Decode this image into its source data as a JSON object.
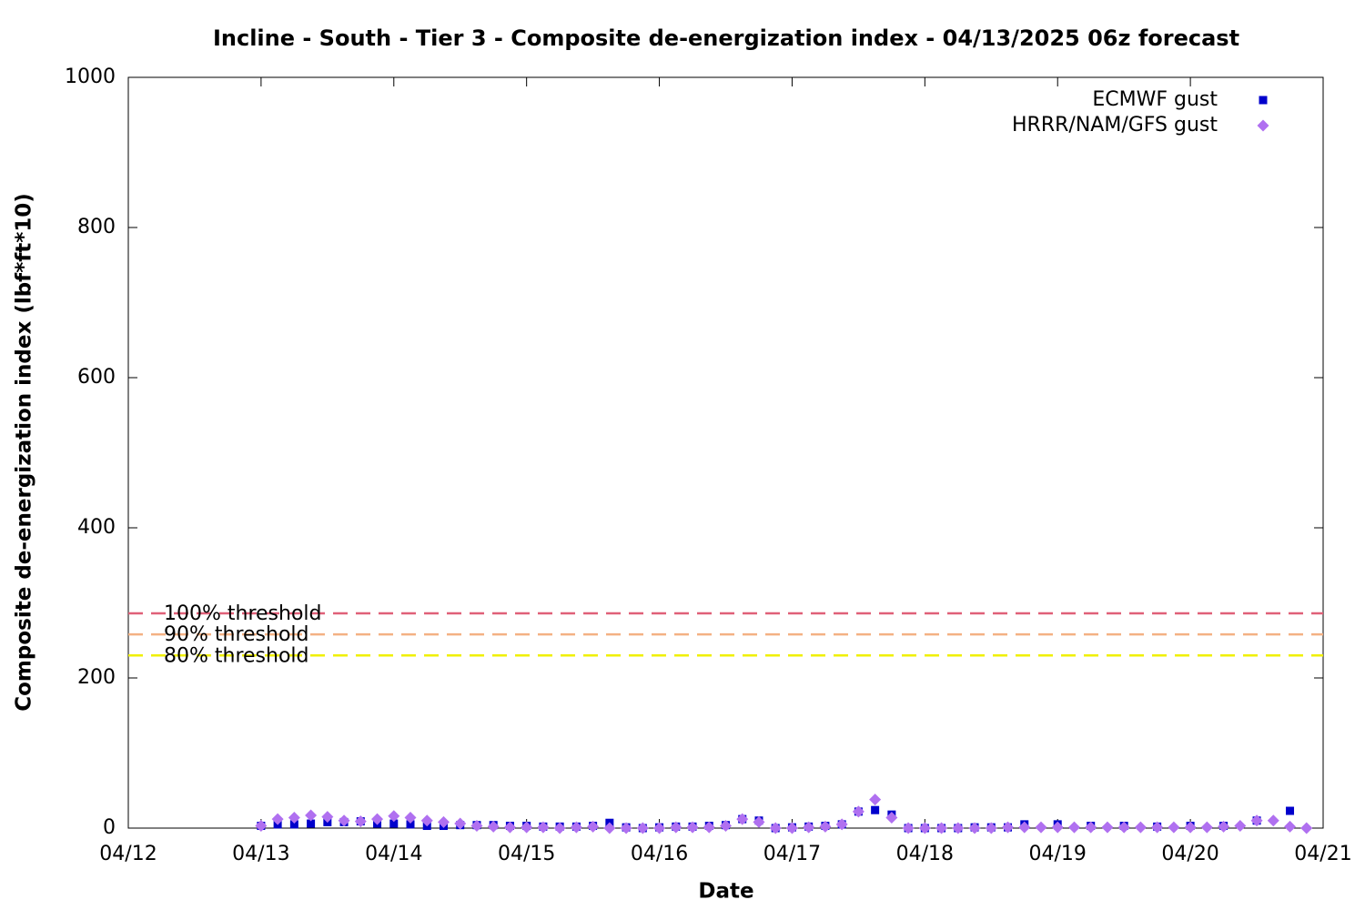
{
  "chart_data": {
    "type": "scatter",
    "title": "Incline - South - Tier 3 - Composite de-energization index - 04/13/2025 06z forecast",
    "x_label": "Date",
    "y_label": "Composite de-energization index (lbf*ft*10)",
    "xlim": [
      0,
      9
    ],
    "xticks": [
      {
        "value": 0,
        "label": "04/12"
      },
      {
        "value": 1,
        "label": "04/13"
      },
      {
        "value": 2,
        "label": "04/14"
      },
      {
        "value": 3,
        "label": "04/15"
      },
      {
        "value": 4,
        "label": "04/16"
      },
      {
        "value": 5,
        "label": "04/17"
      },
      {
        "value": 6,
        "label": "04/18"
      },
      {
        "value": 7,
        "label": "04/19"
      },
      {
        "value": 8,
        "label": "04/20"
      },
      {
        "value": 9,
        "label": "04/21"
      }
    ],
    "ylim": [
      0,
      1000
    ],
    "yticks": [
      0,
      200,
      400,
      600,
      800,
      1000
    ],
    "legend_position": "top-right",
    "thresholds": [
      {
        "label": "100% threshold",
        "value": 286,
        "color": "#e06078"
      },
      {
        "label": "90% threshold",
        "value": 258,
        "color": "#f4b183"
      },
      {
        "label": "80% threshold",
        "value": 230,
        "color": "#f0f000"
      }
    ],
    "series": [
      {
        "name": "ECMWF gust",
        "color": "#0000cc",
        "marker": "square",
        "x": [
          1.0,
          1.125,
          1.25,
          1.375,
          1.5,
          1.625,
          1.75,
          1.875,
          2.0,
          2.125,
          2.25,
          2.375,
          2.5,
          2.625,
          2.75,
          2.875,
          3.0,
          3.125,
          3.25,
          3.375,
          3.5,
          3.625,
          3.75,
          3.875,
          4.0,
          4.125,
          4.25,
          4.375,
          4.5,
          4.625,
          4.75,
          4.875,
          5.0,
          5.125,
          5.25,
          5.375,
          5.5,
          5.625,
          5.75,
          5.875,
          6.0,
          6.125,
          6.25,
          6.375,
          6.5,
          6.625,
          6.75,
          7.0,
          7.25,
          7.5,
          7.75,
          8.0,
          8.25,
          8.5,
          8.75
        ],
        "values": [
          3,
          5,
          5,
          6,
          8,
          8,
          9,
          6,
          6,
          5,
          3,
          3,
          4,
          4,
          4,
          3,
          3,
          2,
          2,
          2,
          3,
          7,
          1,
          0,
          1,
          2,
          2,
          3,
          4,
          12,
          10,
          0,
          1,
          2,
          3,
          5,
          22,
          24,
          18,
          0,
          0,
          0,
          0,
          1,
          1,
          1,
          5,
          5,
          3,
          3,
          2,
          3,
          3,
          10,
          23
        ]
      },
      {
        "name": "HRRR/NAM/GFS gust",
        "color": "#b070f0",
        "marker": "diamond",
        "x": [
          1.0,
          1.125,
          1.25,
          1.375,
          1.5,
          1.625,
          1.75,
          1.875,
          2.0,
          2.125,
          2.25,
          2.375,
          2.5,
          2.625,
          2.75,
          2.875,
          3.0,
          3.125,
          3.25,
          3.375,
          3.5,
          3.625,
          3.75,
          3.875,
          4.0,
          4.125,
          4.25,
          4.375,
          4.5,
          4.625,
          4.75,
          4.875,
          5.0,
          5.125,
          5.25,
          5.375,
          5.5,
          5.625,
          5.75,
          5.875,
          6.0,
          6.125,
          6.25,
          6.375,
          6.5,
          6.625,
          6.75,
          6.875,
          7.0,
          7.125,
          7.25,
          7.375,
          7.5,
          7.625,
          7.75,
          7.875,
          8.0,
          8.125,
          8.25,
          8.375,
          8.5,
          8.625,
          8.75,
          8.875
        ],
        "values": [
          3,
          12,
          14,
          17,
          15,
          10,
          9,
          12,
          16,
          14,
          10,
          8,
          6,
          3,
          2,
          1,
          1,
          1,
          0,
          1,
          2,
          0,
          0,
          0,
          0,
          1,
          1,
          1,
          3,
          12,
          8,
          0,
          0,
          1,
          2,
          5,
          22,
          38,
          14,
          0,
          0,
          0,
          0,
          0,
          0,
          1,
          1,
          1,
          1,
          1,
          1,
          1,
          1,
          1,
          1,
          1,
          1,
          1,
          2,
          3,
          10,
          10,
          2,
          0
        ]
      }
    ]
  }
}
